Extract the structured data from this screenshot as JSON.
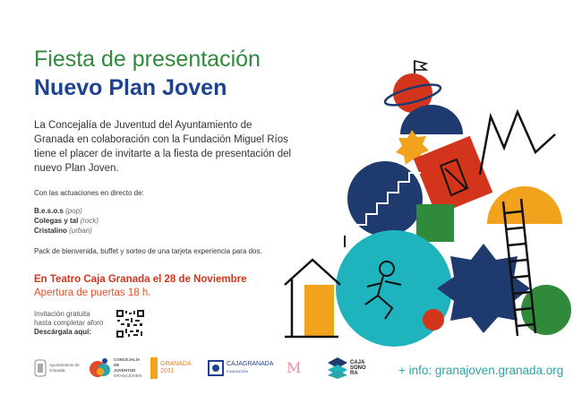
{
  "title": "Fiesta de presentación",
  "subtitle": "Nuevo Plan Joven",
  "intro": "La Concejalía de Juventud del Ayuntamiento de Granada en colaboración con la Fundación Miguel Ríos tiene el placer de invitarte a la fiesta de presentación del nuevo Plan Joven.",
  "lineup_label": "Con las actuaciones en directo de:",
  "bands": [
    {
      "name": "B.e.s.o.s",
      "genre": "(pop)"
    },
    {
      "name": "Colegas y tal",
      "genre": "(rock)"
    },
    {
      "name": "Cristalino",
      "genre": "(urban)"
    }
  ],
  "pack": "Pack de bienvenida, buffet y sorteo de una tarjeta experiencia para dos.",
  "venue": "En Teatro Caja Granada el 28 de Noviembre",
  "doors": "Apertura de puertas 18 h.",
  "invite_line1": "Invitación gratuita",
  "invite_line2": "hasta completar aforo",
  "download": "Descárgala aquí:",
  "logos": {
    "ayto": "Ayuntamiento de Granada",
    "concejalia": "CONCEJALÍA DE JUVENTUD",
    "concejalia_sub": "GRANAJOVEN",
    "granada2031": "GRANADA 2031",
    "cajagranada": "CAJAGRANADA",
    "cajagranada_sub": "FUNDACIÓN",
    "cajasonora": "CAJA SONO RA"
  },
  "info": "+ info: granajoven.granada.org",
  "colors": {
    "green": "#2f8a3c",
    "navy": "#1e4190",
    "red": "#d2351c",
    "orange": "#f2a31d",
    "teal": "#1fb3bd"
  }
}
